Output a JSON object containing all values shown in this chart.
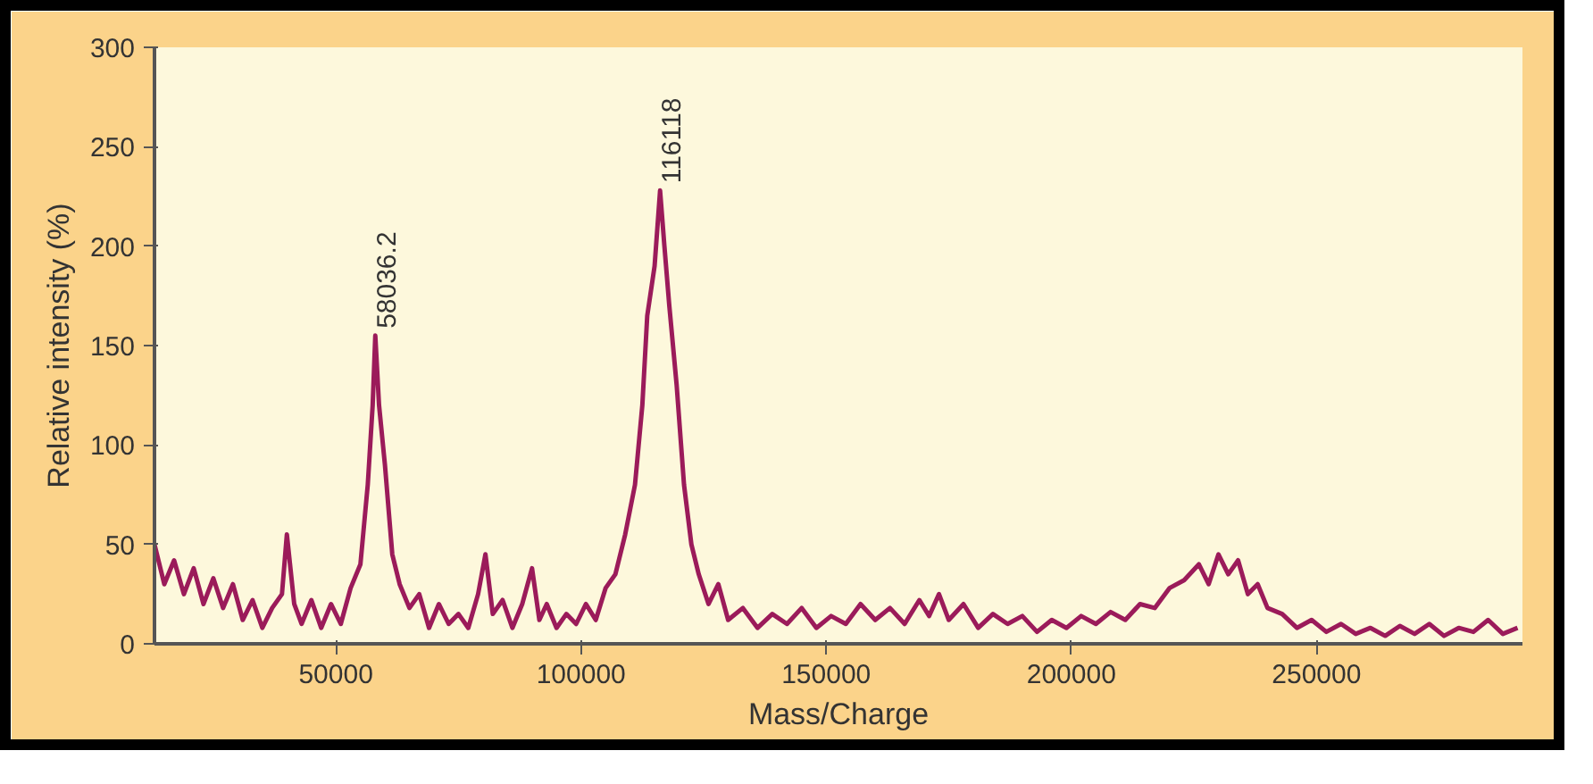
{
  "chart_data": {
    "type": "line",
    "xlabel": "Mass/Charge",
    "ylabel": "Relative intensity (%)",
    "xlim": [
      13000,
      292000
    ],
    "ylim": [
      0,
      300
    ],
    "xticks": [
      50000,
      100000,
      150000,
      200000,
      250000
    ],
    "yticks": [
      0,
      50,
      100,
      150,
      200,
      250,
      300
    ],
    "grid": false,
    "marker": "none",
    "line_style": "solid",
    "annotations": [
      {
        "text": "58036.2",
        "x": 58036,
        "y": 155
      },
      {
        "text": "116118",
        "x": 116118,
        "y": 228
      }
    ],
    "x": [
      13000,
      15000,
      17000,
      19000,
      21000,
      23000,
      25000,
      27000,
      29000,
      31000,
      33000,
      35000,
      37000,
      39000,
      40000,
      41500,
      43000,
      45000,
      47000,
      49000,
      51000,
      53000,
      55000,
      56500,
      57500,
      58036,
      58800,
      60000,
      61500,
      63000,
      65000,
      67000,
      69000,
      71000,
      73000,
      75000,
      77000,
      79000,
      80500,
      82000,
      84000,
      86000,
      88000,
      90000,
      91500,
      93000,
      95000,
      97000,
      99000,
      101000,
      103000,
      105000,
      107000,
      109000,
      111000,
      112500,
      113500,
      115000,
      116118,
      117000,
      118000,
      119500,
      121000,
      122500,
      124000,
      126000,
      128000,
      130000,
      133000,
      136000,
      139000,
      142000,
      145000,
      148000,
      151000,
      154000,
      157000,
      160000,
      163000,
      166000,
      169000,
      171000,
      173000,
      175000,
      178000,
      181000,
      184000,
      187000,
      190000,
      193000,
      196000,
      199000,
      202000,
      205000,
      208000,
      211000,
      214000,
      217000,
      220000,
      223000,
      226000,
      228000,
      230000,
      232000,
      234000,
      236000,
      238000,
      240000,
      243000,
      246000,
      249000,
      252000,
      255000,
      258000,
      261000,
      264000,
      267000,
      270000,
      273000,
      276000,
      279000,
      282000,
      285000,
      288000,
      291000
    ],
    "series": [
      {
        "color": "#9b1b5a",
        "values": [
          50,
          30,
          42,
          25,
          38,
          20,
          33,
          18,
          30,
          12,
          22,
          8,
          18,
          25,
          55,
          20,
          10,
          22,
          8,
          20,
          10,
          28,
          40,
          80,
          120,
          155,
          120,
          90,
          45,
          30,
          18,
          25,
          8,
          20,
          10,
          15,
          8,
          25,
          45,
          15,
          22,
          8,
          20,
          38,
          12,
          20,
          8,
          15,
          10,
          20,
          12,
          28,
          35,
          55,
          80,
          120,
          165,
          190,
          228,
          200,
          170,
          130,
          80,
          50,
          35,
          20,
          30,
          12,
          18,
          8,
          15,
          10,
          18,
          8,
          14,
          10,
          20,
          12,
          18,
          10,
          22,
          14,
          25,
          12,
          20,
          8,
          15,
          10,
          14,
          6,
          12,
          8,
          14,
          10,
          16,
          12,
          20,
          18,
          28,
          32,
          40,
          30,
          45,
          35,
          42,
          25,
          30,
          18,
          15,
          8,
          12,
          6,
          10,
          5,
          8,
          4,
          9,
          5,
          10,
          4,
          8,
          6,
          12,
          5,
          8
        ]
      }
    ]
  }
}
